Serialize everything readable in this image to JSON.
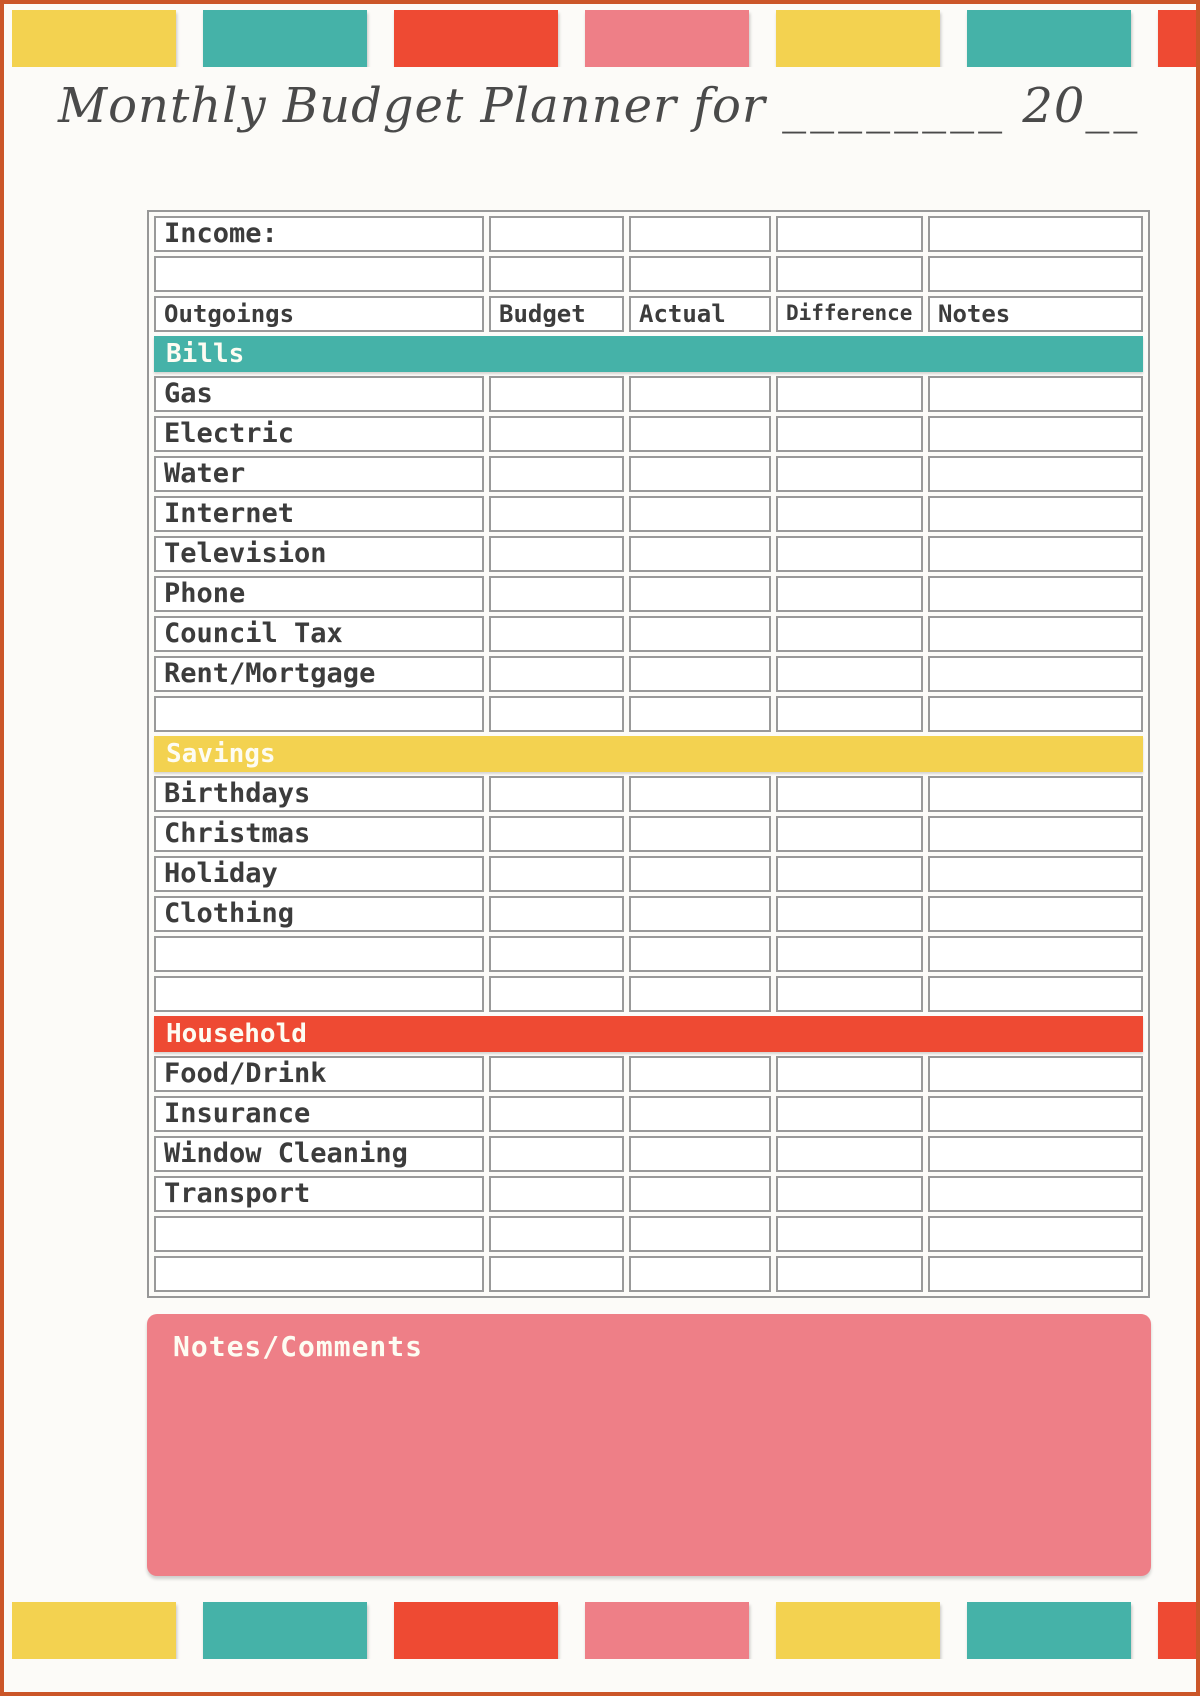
{
  "title": {
    "prefix": "Monthly Budget Planner for ",
    "blank": "________",
    "year_prefix": " 20",
    "year_blank": "__"
  },
  "table": {
    "income_label": "Income:",
    "columns": [
      "Outgoings",
      "Budget",
      "Actual",
      "Difference",
      "Notes"
    ],
    "sections": [
      {
        "name": "Bills",
        "color": "teal",
        "items": [
          "Gas",
          "Electric",
          "Water",
          "Internet",
          "Television",
          "Phone",
          "Council Tax",
          "Rent/Mortgage"
        ],
        "empty_rows_after": 1
      },
      {
        "name": "Savings",
        "color": "yellow",
        "items": [
          "Birthdays",
          "Christmas",
          "Holiday",
          "Clothing"
        ],
        "empty_rows_after": 2
      },
      {
        "name": "Household",
        "color": "red",
        "items": [
          "Food/Drink",
          "Insurance",
          "Window Cleaning",
          "Transport"
        ],
        "empty_rows_after": 2
      }
    ]
  },
  "notes": {
    "label": "Notes/Comments"
  },
  "colors": {
    "yellow": "#F3D250",
    "teal": "#45B2A8",
    "red": "#EE4A33",
    "pink": "#EE7F87",
    "frame": "#CB5628",
    "table_border": "#979797",
    "text": "#3C3C3C"
  },
  "decorations": {
    "block_sequence": [
      "yellow",
      "teal",
      "red",
      "pink",
      "yellow",
      "teal",
      "red"
    ]
  }
}
